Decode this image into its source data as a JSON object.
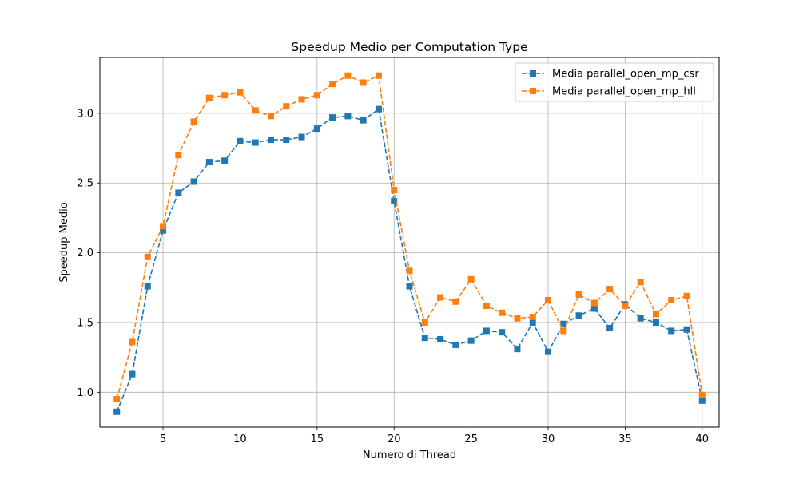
{
  "chart_data": {
    "type": "line",
    "title": "Speedup Medio per Computation Type",
    "xlabel": "Numero di Thread",
    "ylabel": "Speedup Medio",
    "xlim": [
      0.9,
      41.1
    ],
    "ylim": [
      0.75,
      3.4
    ],
    "xticks": [
      5,
      10,
      15,
      20,
      25,
      30,
      35,
      40
    ],
    "yticks": [
      1.0,
      1.5,
      2.0,
      2.5,
      3.0
    ],
    "grid": true,
    "legend_position": "top-right",
    "x": [
      2,
      3,
      4,
      5,
      6,
      7,
      8,
      9,
      10,
      11,
      12,
      13,
      14,
      15,
      16,
      17,
      18,
      19,
      20,
      21,
      22,
      23,
      24,
      25,
      26,
      27,
      28,
      29,
      30,
      31,
      32,
      33,
      34,
      35,
      36,
      37,
      38,
      39,
      40
    ],
    "series": [
      {
        "name": "Media parallel_open_mp_csr",
        "color": "#1f77b4",
        "values": [
          0.86,
          1.13,
          1.76,
          2.16,
          2.43,
          2.51,
          2.65,
          2.66,
          2.8,
          2.79,
          2.81,
          2.81,
          2.83,
          2.89,
          2.97,
          2.98,
          2.95,
          3.03,
          2.37,
          1.76,
          1.39,
          1.38,
          1.34,
          1.37,
          1.44,
          1.43,
          1.31,
          1.5,
          1.29,
          1.49,
          1.55,
          1.6,
          1.46,
          1.63,
          1.53,
          1.5,
          1.44,
          1.45,
          0.94
        ]
      },
      {
        "name": "Media parallel_open_mp_hll",
        "color": "#ff7f0e",
        "values": [
          0.95,
          1.36,
          1.97,
          2.19,
          2.7,
          2.94,
          3.11,
          3.13,
          3.15,
          3.02,
          2.98,
          3.05,
          3.1,
          3.13,
          3.21,
          3.27,
          3.22,
          3.27,
          2.45,
          1.87,
          1.5,
          1.68,
          1.65,
          1.81,
          1.62,
          1.57,
          1.53,
          1.54,
          1.66,
          1.44,
          1.7,
          1.64,
          1.74,
          1.62,
          1.79,
          1.56,
          1.66,
          1.69,
          0.98
        ]
      }
    ]
  }
}
